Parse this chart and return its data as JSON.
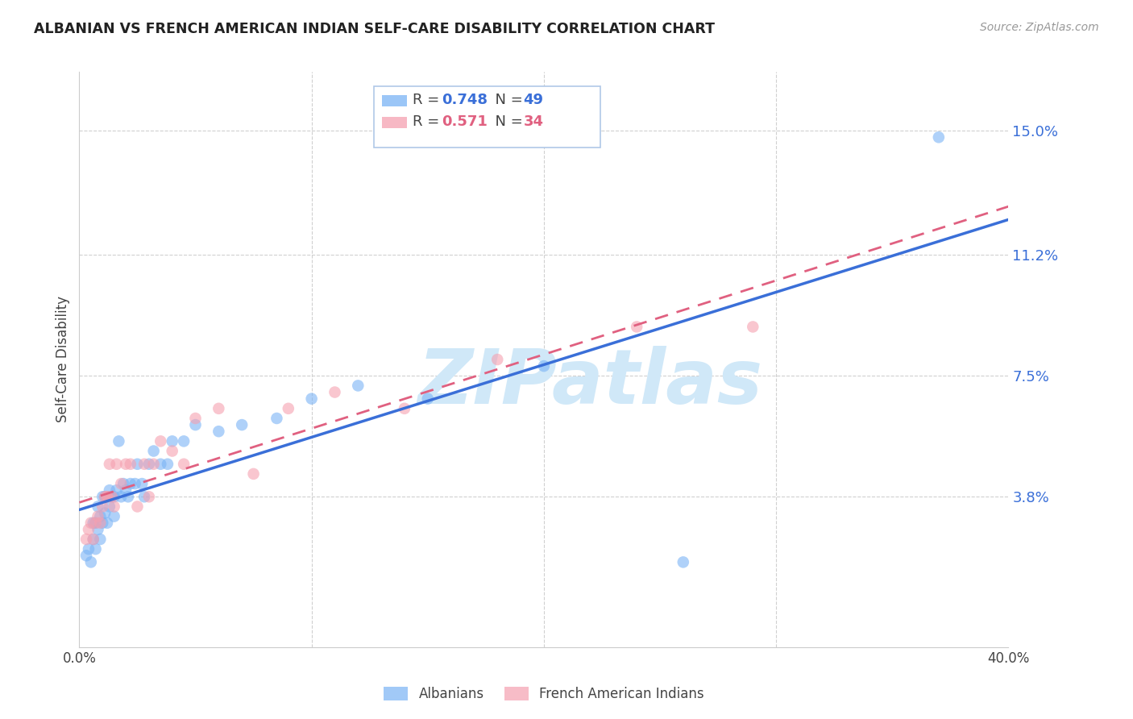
{
  "title": "ALBANIAN VS FRENCH AMERICAN INDIAN SELF-CARE DISABILITY CORRELATION CHART",
  "source": "Source: ZipAtlas.com",
  "ylabel": "Self-Care Disability",
  "xlim": [
    0.0,
    0.4
  ],
  "ylim": [
    -0.008,
    0.168
  ],
  "ytick_positions": [
    0.038,
    0.075,
    0.112,
    0.15
  ],
  "ytick_labels": [
    "3.8%",
    "7.5%",
    "11.2%",
    "15.0%"
  ],
  "r_albanian": 0.748,
  "n_albanian": 49,
  "r_french": 0.571,
  "n_french": 34,
  "color_albanian": "#7ab3f5",
  "color_french": "#f5a0b0",
  "trendline_albanian_color": "#3a6fd8",
  "trendline_french_color": "#e06080",
  "watermark_text": "ZIPatlas",
  "watermark_color": "#d0e8f8",
  "background_color": "#ffffff",
  "albanian_x": [
    0.003,
    0.004,
    0.005,
    0.006,
    0.006,
    0.007,
    0.007,
    0.008,
    0.008,
    0.009,
    0.009,
    0.01,
    0.01,
    0.011,
    0.011,
    0.012,
    0.012,
    0.013,
    0.013,
    0.014,
    0.015,
    0.015,
    0.016,
    0.017,
    0.018,
    0.019,
    0.02,
    0.021,
    0.022,
    0.024,
    0.025,
    0.027,
    0.028,
    0.03,
    0.032,
    0.035,
    0.038,
    0.04,
    0.045,
    0.05,
    0.06,
    0.07,
    0.085,
    0.1,
    0.12,
    0.15,
    0.2,
    0.26,
    0.37
  ],
  "albanian_y": [
    0.02,
    0.022,
    0.018,
    0.025,
    0.03,
    0.022,
    0.03,
    0.028,
    0.035,
    0.025,
    0.032,
    0.03,
    0.038,
    0.033,
    0.038,
    0.03,
    0.038,
    0.035,
    0.04,
    0.038,
    0.038,
    0.032,
    0.04,
    0.055,
    0.038,
    0.042,
    0.04,
    0.038,
    0.042,
    0.042,
    0.048,
    0.042,
    0.038,
    0.048,
    0.052,
    0.048,
    0.048,
    0.055,
    0.055,
    0.06,
    0.058,
    0.06,
    0.062,
    0.068,
    0.072,
    0.068,
    0.078,
    0.018,
    0.148
  ],
  "french_x": [
    0.003,
    0.004,
    0.005,
    0.006,
    0.007,
    0.008,
    0.009,
    0.01,
    0.011,
    0.012,
    0.012,
    0.013,
    0.014,
    0.015,
    0.016,
    0.018,
    0.02,
    0.022,
    0.025,
    0.028,
    0.03,
    0.032,
    0.035,
    0.04,
    0.045,
    0.05,
    0.06,
    0.075,
    0.09,
    0.11,
    0.14,
    0.18,
    0.24,
    0.29
  ],
  "french_y": [
    0.025,
    0.028,
    0.03,
    0.025,
    0.03,
    0.032,
    0.03,
    0.035,
    0.038,
    0.038,
    0.038,
    0.048,
    0.038,
    0.035,
    0.048,
    0.042,
    0.048,
    0.048,
    0.035,
    0.048,
    0.038,
    0.048,
    0.055,
    0.052,
    0.048,
    0.062,
    0.065,
    0.045,
    0.065,
    0.07,
    0.065,
    0.08,
    0.09,
    0.09
  ]
}
